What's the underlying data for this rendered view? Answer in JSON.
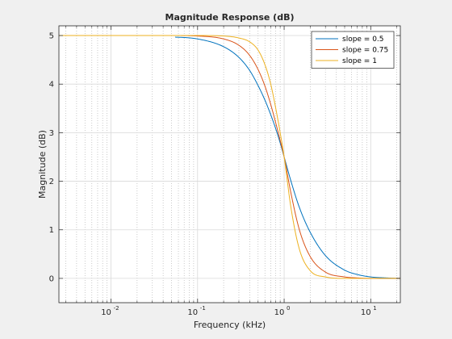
{
  "chart_data": {
    "type": "line",
    "title": "Magnitude Response (dB)",
    "xlabel": "Frequency (kHz)",
    "ylabel": "Magnitude (dB)",
    "xscale": "log",
    "xlim": [
      0.0025,
      22
    ],
    "ylim": [
      -0.5,
      5.2
    ],
    "grid": true,
    "minor_grid": true,
    "legend_position": "top-right",
    "x_ticks": [
      {
        "value": 0.01,
        "base": "10",
        "exp": "-2"
      },
      {
        "value": 0.1,
        "base": "10",
        "exp": "-1"
      },
      {
        "value": 1,
        "base": "10",
        "exp": "0"
      },
      {
        "value": 10,
        "base": "10",
        "exp": "1"
      }
    ],
    "y_ticks": [
      0,
      1,
      2,
      3,
      4,
      5
    ],
    "x": [
      0.0025,
      0.01,
      0.05,
      0.1,
      0.2,
      0.3,
      0.4,
      0.5,
      0.6,
      0.7,
      0.8,
      0.9,
      1.0,
      1.2,
      1.5,
      2,
      3,
      5,
      7,
      10,
      15,
      22
    ],
    "series": [
      {
        "name": "slope = 0.5",
        "color": "#0072bd",
        "x_start": 0.055,
        "values": [
          5.0,
          5.0,
          4.97,
          4.93,
          4.77,
          4.55,
          4.28,
          3.97,
          3.67,
          3.37,
          3.08,
          2.79,
          2.5,
          2.0,
          1.46,
          0.95,
          0.47,
          0.17,
          0.08,
          0.03,
          0.01,
          0.0
        ]
      },
      {
        "name": "slope = 0.75",
        "color": "#d95319",
        "x_start": 0.055,
        "values": [
          5.0,
          5.0,
          5.0,
          4.99,
          4.93,
          4.8,
          4.59,
          4.3,
          3.96,
          3.58,
          3.2,
          2.84,
          2.5,
          1.75,
          1.0,
          0.45,
          0.13,
          0.03,
          0.01,
          0.0,
          0.0,
          0.0
        ]
      },
      {
        "name": "slope = 1",
        "color": "#edb120",
        "x_start": 0.0025,
        "values": [
          5.0,
          5.0,
          5.0,
          5.0,
          4.99,
          4.95,
          4.87,
          4.7,
          4.4,
          4.0,
          3.5,
          3.0,
          2.5,
          1.45,
          0.6,
          0.16,
          0.03,
          0.0,
          0.0,
          0.0,
          0.0,
          0.0
        ]
      }
    ]
  }
}
